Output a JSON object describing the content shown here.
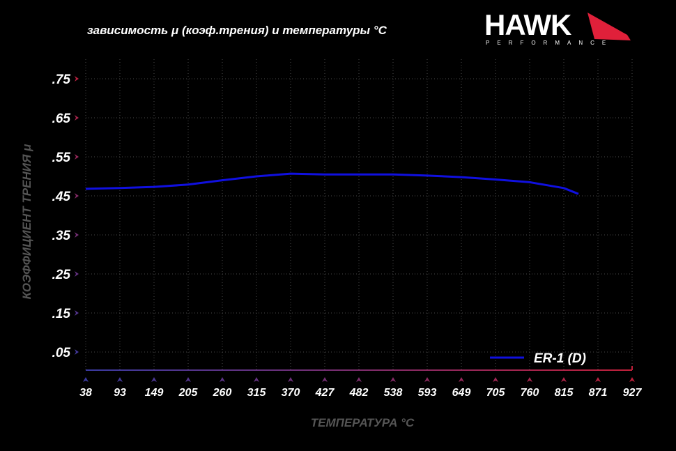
{
  "chart_data": {
    "type": "line",
    "title": "зависимость μ (коэф.трения) и температуры °C",
    "xlabel": "ТЕМПЕРАТУРА °C",
    "ylabel": "КОЭФФИЦИЕНТ ТРЕНИЯ μ",
    "x_ticks": [
      "38",
      "93",
      "149",
      "205",
      "260",
      "315",
      "370",
      "427",
      "482",
      "538",
      "593",
      "649",
      "705",
      "760",
      "815",
      "871",
      "927"
    ],
    "y_ticks": [
      ".75",
      ".65",
      ".55",
      ".45",
      ".35",
      ".25",
      ".15",
      ".05"
    ],
    "ylim": [
      0.0,
      0.8
    ],
    "xlim": [
      38,
      927
    ],
    "grid": true,
    "legend_position": "bottom-right",
    "series": [
      {
        "name": "ER-1 (D)",
        "color": "#1010e0",
        "x": [
          38,
          93,
          149,
          205,
          260,
          315,
          370,
          427,
          482,
          538,
          593,
          649,
          705,
          760,
          815,
          839
        ],
        "y": [
          0.468,
          0.47,
          0.473,
          0.479,
          0.49,
          0.5,
          0.507,
          0.505,
          0.505,
          0.505,
          0.502,
          0.498,
          0.492,
          0.485,
          0.47,
          0.455
        ]
      }
    ]
  },
  "logo": {
    "brand": "HAWK",
    "sub": "PERFORMANCE"
  },
  "colors": {
    "axis_top": "#c0203a",
    "axis_bottom": "#3a3aa0",
    "grid": "#555555"
  }
}
